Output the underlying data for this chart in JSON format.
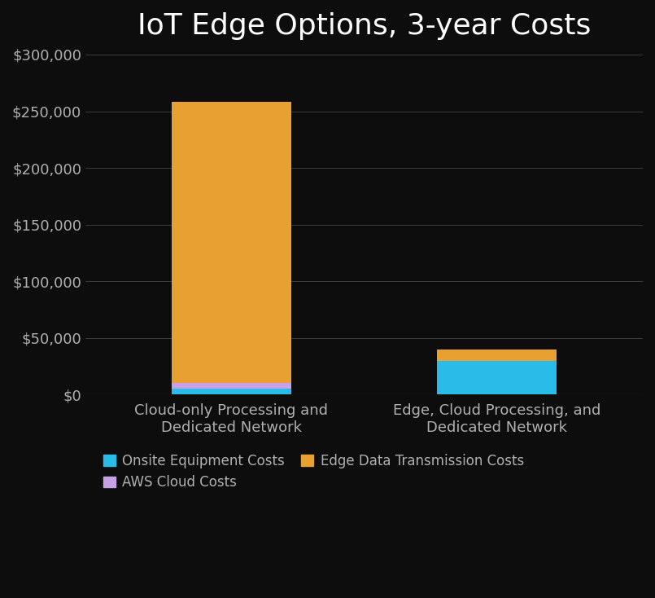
{
  "title": "IoT Edge Options, 3-year Costs",
  "categories": [
    "Cloud-only Processing and\nDedicated Network",
    "Edge, Cloud Processing, and\nDedicated Network"
  ],
  "onsite_equipment": [
    5000,
    30000
  ],
  "aws_cloud": [
    5000,
    0
  ],
  "edge_transmission": [
    248000,
    10000
  ],
  "colors": {
    "onsite": "#29bce8",
    "aws": "#c8a0e8",
    "edge": "#e8a030"
  },
  "background_color": "#0d0d0d",
  "axes_bg_color": "#0d0d0d",
  "text_color": "#b0b0b0",
  "title_color": "#ffffff",
  "grid_color": "#444444",
  "ylim": [
    0,
    300000
  ],
  "yticks": [
    0,
    50000,
    100000,
    150000,
    200000,
    250000,
    300000
  ],
  "title_fontsize": 26,
  "tick_fontsize": 13,
  "label_fontsize": 13,
  "legend_fontsize": 12,
  "bar_width": 0.45
}
